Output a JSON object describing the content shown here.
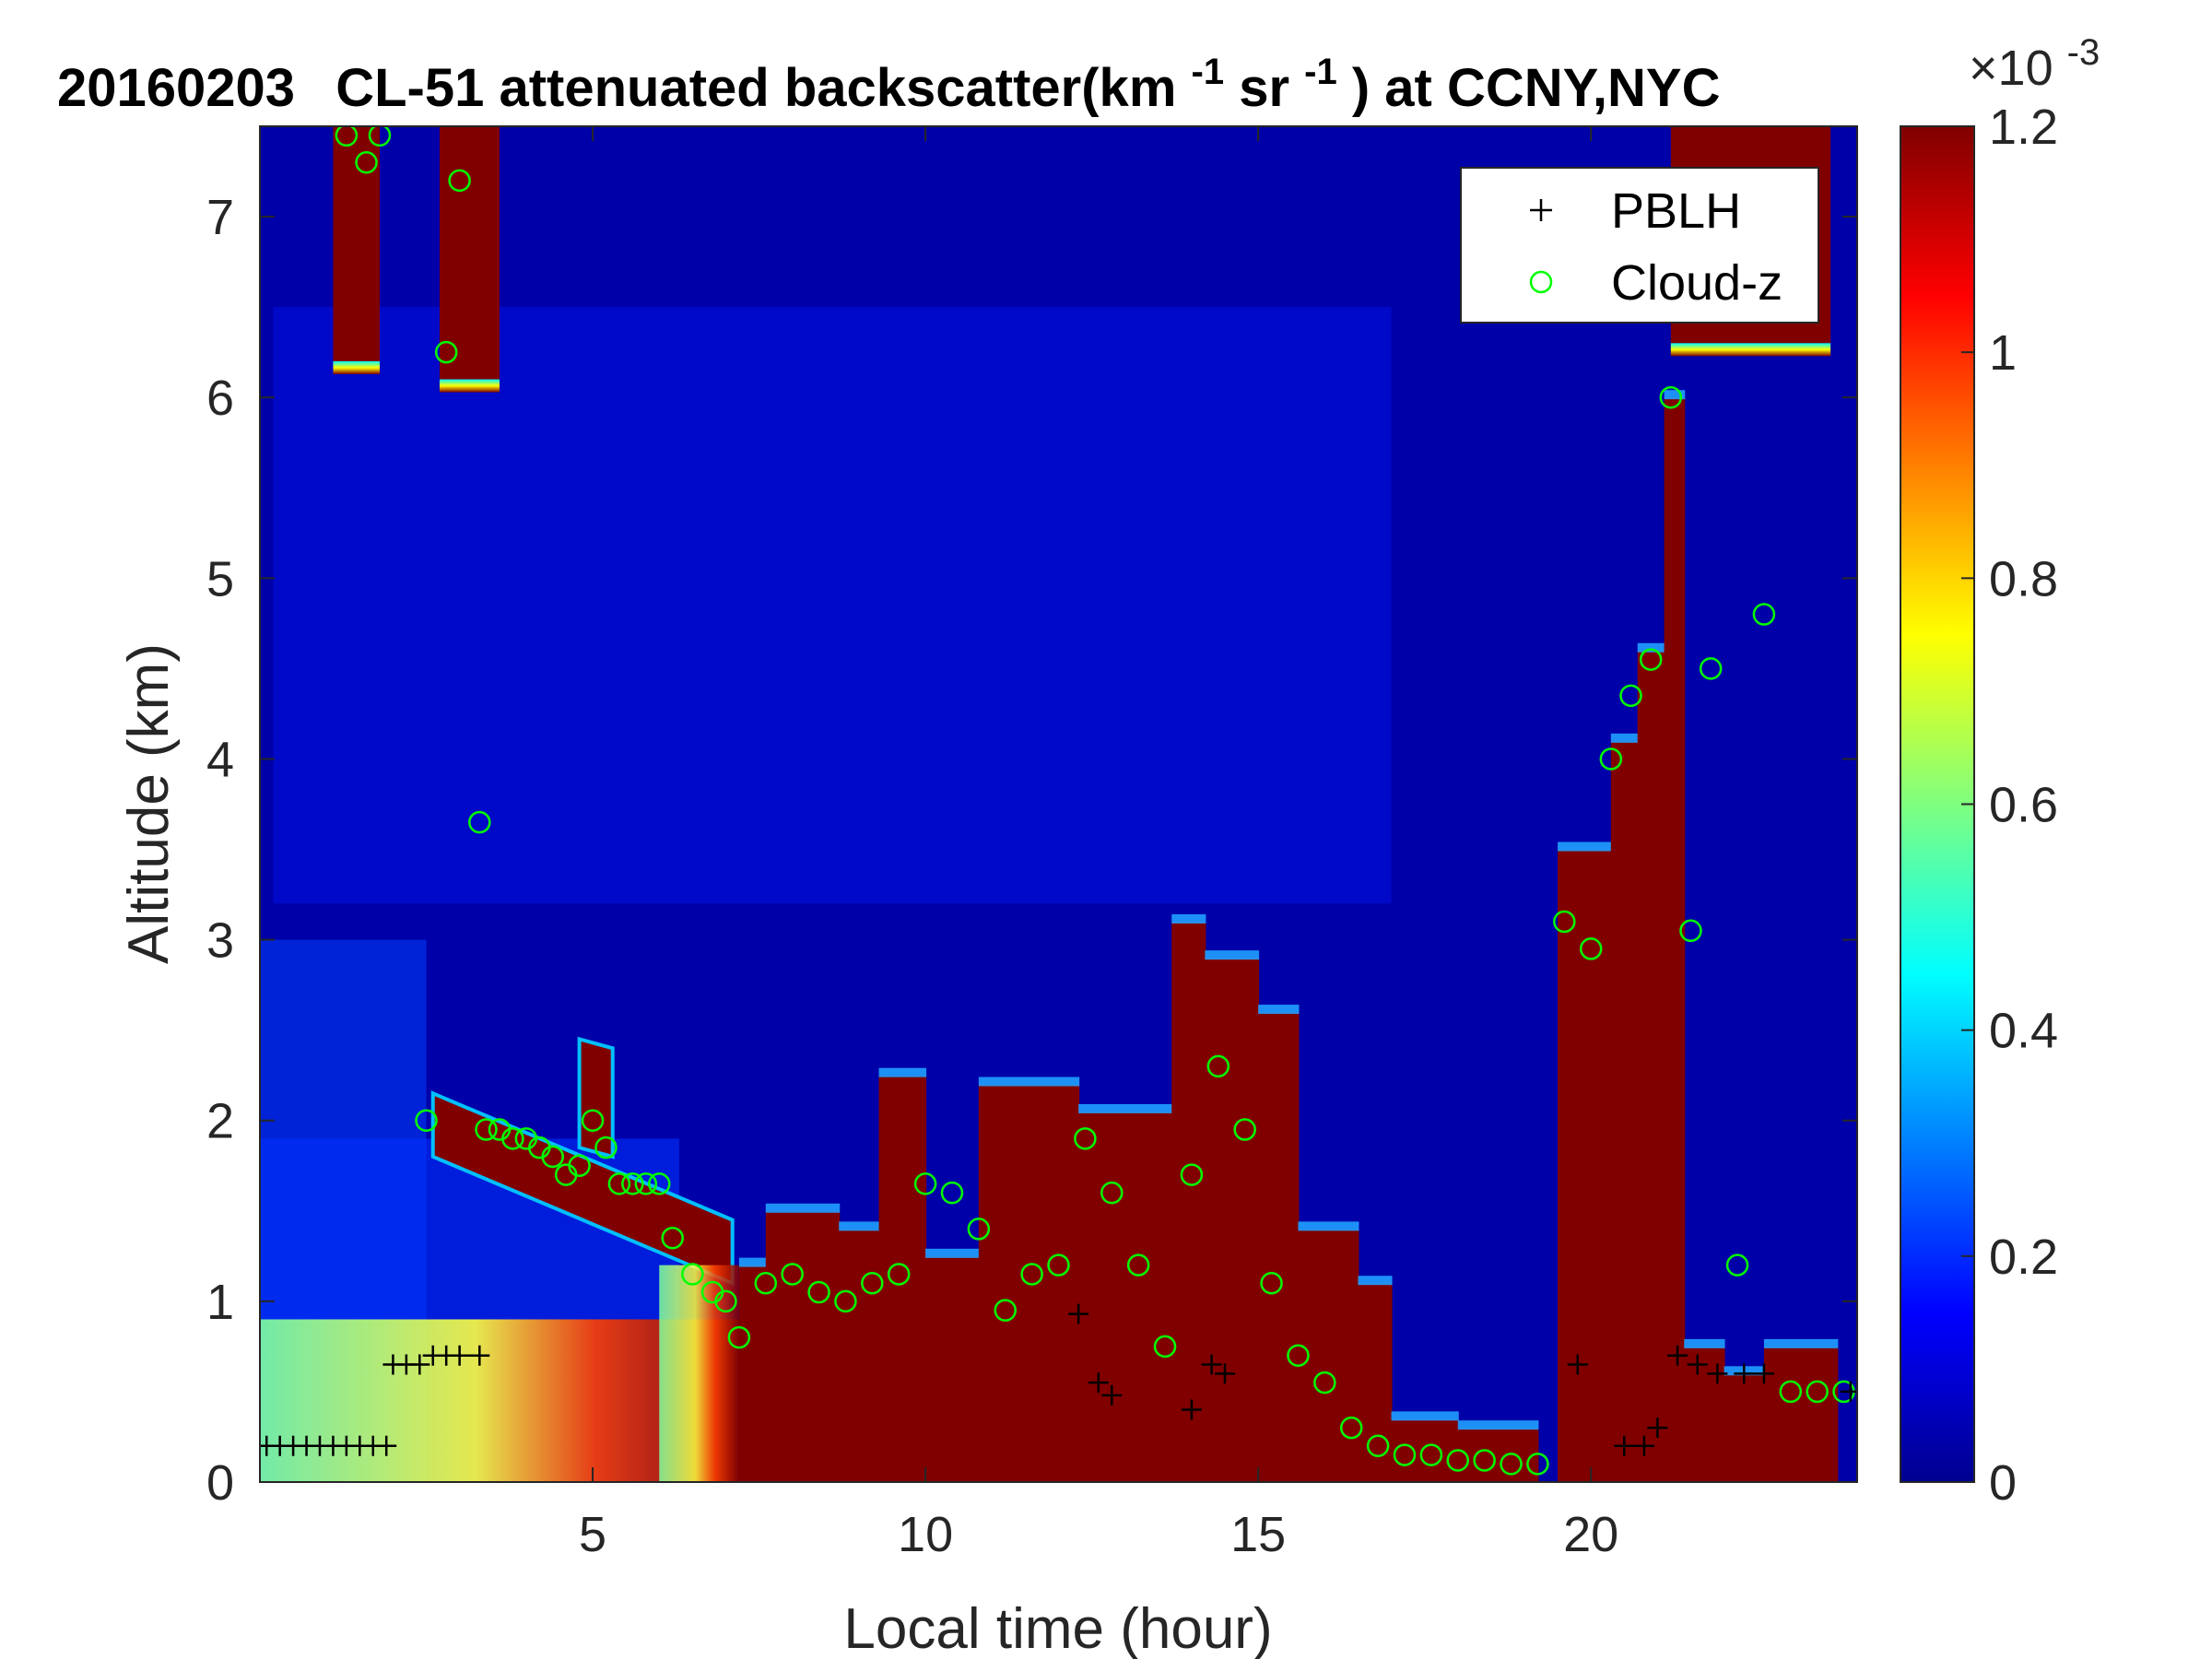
{
  "chart_data": {
    "type": "heatmap",
    "title": {
      "date": "20160203",
      "text": "CL-51 attenuated backscatter(km",
      "sup1": "-1",
      "mid": "sr",
      "sup2": "-1",
      "tail": ") at CCNY,NYC"
    },
    "xlabel": "Local time (hour)",
    "ylabel": "Altitude (km)",
    "xlim": [
      0,
      24
    ],
    "ylim": [
      0,
      7.5
    ],
    "xticks": [
      5,
      10,
      15,
      20
    ],
    "yticks": [
      0,
      1,
      2,
      3,
      4,
      5,
      6,
      7
    ],
    "colorbar": {
      "colormap": "jet",
      "clim": [
        0,
        1.2
      ],
      "ticks": [
        "0",
        "0.2",
        "0.4",
        "0.6",
        "0.8",
        "1",
        "1.2"
      ],
      "exponent_base": "×10",
      "exponent": "-3"
    },
    "legend": {
      "placement": "top-right",
      "items": [
        {
          "marker": "+",
          "label": "PBLH",
          "color": "#000000"
        },
        {
          "marker": "o",
          "label": "Cloud-z",
          "color": "#00ff00"
        }
      ]
    },
    "field": {
      "description_units": "backscatter ×10^-3 km^-1 sr^-1",
      "high_layers": [
        {
          "t0": 1.1,
          "t1": 1.8,
          "zlow": 6.2,
          "ztop": 7.5
        },
        {
          "t0": 2.7,
          "t1": 3.6,
          "zlow": 6.1,
          "ztop": 7.5
        },
        {
          "t0": 21.2,
          "t1": 23.6,
          "zlow": 6.3,
          "ztop": 7.5
        }
      ],
      "elevated_layers": [
        {
          "t0": 2.6,
          "t1": 7.1,
          "ztop_start": 2.15,
          "ztop_end": 1.45,
          "thick": 0.35
        },
        {
          "t0": 4.8,
          "t1": 5.3,
          "ztop_start": 2.45,
          "ztop_end": 2.4,
          "thick": 0.6
        }
      ],
      "surface_blocks": [
        [
          7.2,
          7.6,
          1.2
        ],
        [
          7.6,
          8.7,
          1.5
        ],
        [
          8.7,
          9.3,
          1.4
        ],
        [
          9.3,
          10.0,
          2.25
        ],
        [
          10.0,
          10.8,
          1.25
        ],
        [
          10.8,
          12.3,
          2.2
        ],
        [
          12.3,
          13.7,
          2.05
        ],
        [
          13.7,
          14.2,
          3.1
        ],
        [
          14.2,
          15.0,
          2.9
        ],
        [
          15.0,
          15.6,
          2.6
        ],
        [
          15.6,
          16.5,
          1.4
        ],
        [
          16.5,
          17.0,
          1.1
        ],
        [
          17.0,
          18.0,
          0.35
        ],
        [
          18.0,
          19.2,
          0.3
        ],
        [
          19.5,
          20.3,
          3.5
        ],
        [
          20.3,
          20.7,
          4.1
        ],
        [
          20.7,
          21.1,
          4.6
        ],
        [
          21.1,
          21.4,
          6.0
        ],
        [
          21.4,
          22.0,
          0.75
        ],
        [
          22.0,
          22.6,
          0.6
        ],
        [
          22.6,
          23.7,
          0.75
        ]
      ],
      "columns_high": [
        21.1,
        21.8,
        22.0,
        23.0,
        23.9
      ]
    },
    "series": [
      {
        "name": "PBLH",
        "marker": "+",
        "x": [
          0.1,
          0.3,
          0.5,
          0.7,
          0.9,
          1.1,
          1.3,
          1.5,
          1.7,
          1.9,
          2.0,
          2.2,
          2.4,
          2.6,
          2.8,
          3.0,
          3.3,
          12.3,
          12.6,
          12.8,
          14.0,
          14.3,
          14.5,
          19.8,
          20.5,
          20.8,
          21.0,
          21.3,
          21.6,
          21.9,
          22.3,
          22.6,
          23.9
        ],
        "y": [
          0.2,
          0.2,
          0.2,
          0.2,
          0.2,
          0.2,
          0.2,
          0.2,
          0.2,
          0.2,
          0.65,
          0.65,
          0.65,
          0.7,
          0.7,
          0.7,
          0.7,
          0.93,
          0.55,
          0.48,
          0.4,
          0.65,
          0.6,
          0.65,
          0.2,
          0.2,
          0.3,
          0.7,
          0.65,
          0.6,
          0.6,
          0.6,
          0.5
        ]
      },
      {
        "name": "Cloud-z",
        "marker": "o",
        "x": [
          1.3,
          1.6,
          1.8,
          2.5,
          2.8,
          3.0,
          3.3,
          3.4,
          3.6,
          3.8,
          4.0,
          4.2,
          4.4,
          4.6,
          4.8,
          5.0,
          5.2,
          5.4,
          5.6,
          5.8,
          6.0,
          6.2,
          6.5,
          6.8,
          7.0,
          7.2,
          7.6,
          8.0,
          8.4,
          8.8,
          9.2,
          9.6,
          10.0,
          10.4,
          10.8,
          11.2,
          11.6,
          12.0,
          12.4,
          12.8,
          13.2,
          13.6,
          14.0,
          14.4,
          14.8,
          15.2,
          15.6,
          16.0,
          16.4,
          16.8,
          17.2,
          17.6,
          18.0,
          18.4,
          18.8,
          19.2,
          19.6,
          20.0,
          20.3,
          20.6,
          20.9,
          21.2,
          21.5,
          21.8,
          22.2,
          22.6,
          23.0,
          23.4,
          23.8
        ],
        "y": [
          7.45,
          7.3,
          7.45,
          2.0,
          6.25,
          7.2,
          3.65,
          1.95,
          1.95,
          1.9,
          1.9,
          1.85,
          1.8,
          1.7,
          1.75,
          2.0,
          1.85,
          1.65,
          1.65,
          1.65,
          1.65,
          1.35,
          1.15,
          1.05,
          1.0,
          0.8,
          1.1,
          1.15,
          1.05,
          1.0,
          1.1,
          1.15,
          1.65,
          1.6,
          1.4,
          0.95,
          1.15,
          1.2,
          1.9,
          1.6,
          1.2,
          0.75,
          1.7,
          2.3,
          1.95,
          1.1,
          0.7,
          0.55,
          0.3,
          0.2,
          0.15,
          0.15,
          0.12,
          0.12,
          0.1,
          0.1,
          3.1,
          2.95,
          4.0,
          4.35,
          4.55,
          6.0,
          3.05,
          4.5,
          1.2,
          4.8,
          0.5,
          0.5,
          0.5
        ]
      }
    ]
  }
}
